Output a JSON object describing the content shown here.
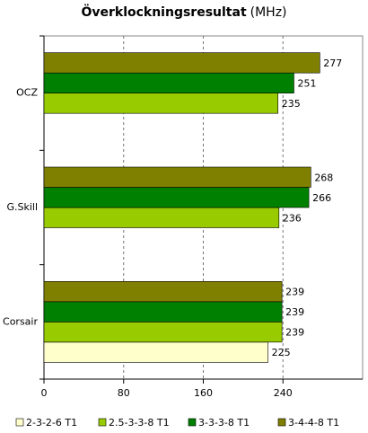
{
  "chart_data": {
    "type": "hbar",
    "title": "Överklockningsresultat",
    "title_unit": "(MHz)",
    "categories": [
      "OCZ",
      "G.Skill",
      "Corsair"
    ],
    "series": [
      {
        "name": "2-3-2-6 T1",
        "color": "#ffffcc",
        "values": [
          null,
          null,
          225
        ]
      },
      {
        "name": "2.5-3-3-8 T1",
        "color": "#99cc00",
        "values": [
          235,
          236,
          239
        ]
      },
      {
        "name": "3-3-3-8 T1",
        "color": "#008000",
        "values": [
          251,
          266,
          239
        ]
      },
      {
        "name": "3-4-4-8 T1",
        "color": "#808000",
        "values": [
          277,
          268,
          239
        ]
      }
    ],
    "xlim": [
      0,
      320
    ],
    "xticks": [
      0,
      80,
      160,
      240
    ],
    "grid": true,
    "legend": "bottom"
  }
}
